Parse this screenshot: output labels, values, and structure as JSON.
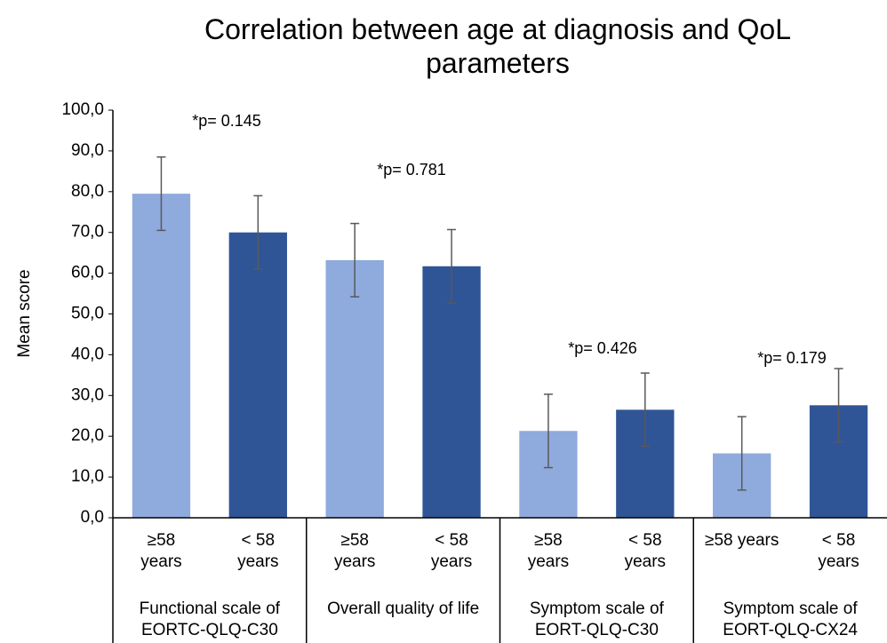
{
  "chart_data": {
    "type": "bar",
    "title": "Correlation between age at diagnosis and QoL parameters",
    "y_label": "Mean score",
    "categories": [
      "≥58\nyears",
      "< 58\nyears",
      "≥58\nyears",
      "< 58\nyears",
      "≥58\nyears",
      "< 58\nyears",
      "≥58 years",
      "< 58\nyears"
    ],
    "groups": [
      {
        "label": "Functional scale of\nEORTC-QLQ-C30",
        "span": 2,
        "annotation": "*p= 0.145"
      },
      {
        "label": "Overall quality of life",
        "span": 2,
        "annotation": "*p= 0.781"
      },
      {
        "label": "Symptom scale of\nEORT-QLQ-C30",
        "span": 2,
        "annotation": "*p= 0.426"
      },
      {
        "label": "Symptom scale of\nEORT-QLQ-CX24",
        "span": 2,
        "annotation": "*p= 0.179"
      }
    ],
    "series": [
      {
        "values": [
          79.5,
          70.0,
          63.2,
          61.7,
          21.3,
          26.5,
          15.8,
          27.6
        ],
        "errors": [
          9.0,
          9.0,
          9.0,
          9.0,
          9.0,
          9.0,
          9.0,
          9.0
        ],
        "colors": [
          "#8faadc",
          "#2f5597",
          "#8faadc",
          "#2f5597",
          "#8faadc",
          "#2f5597",
          "#8faadc",
          "#2f5597"
        ]
      }
    ],
    "ylim": [
      0,
      100
    ],
    "yticks": [
      {
        "value": 0,
        "label": "0,0"
      },
      {
        "value": 10,
        "label": "10,0"
      },
      {
        "value": 20,
        "label": "20,0"
      },
      {
        "value": 30,
        "label": "30,0"
      },
      {
        "value": 40,
        "label": "40,0"
      },
      {
        "value": 50,
        "label": "50,0"
      },
      {
        "value": 60,
        "label": "60,0"
      },
      {
        "value": 70,
        "label": "70,0"
      },
      {
        "value": 80,
        "label": "80,0"
      },
      {
        "value": 90,
        "label": "90,0"
      },
      {
        "value": 100,
        "label": "100,0"
      }
    ],
    "grid": false
  }
}
